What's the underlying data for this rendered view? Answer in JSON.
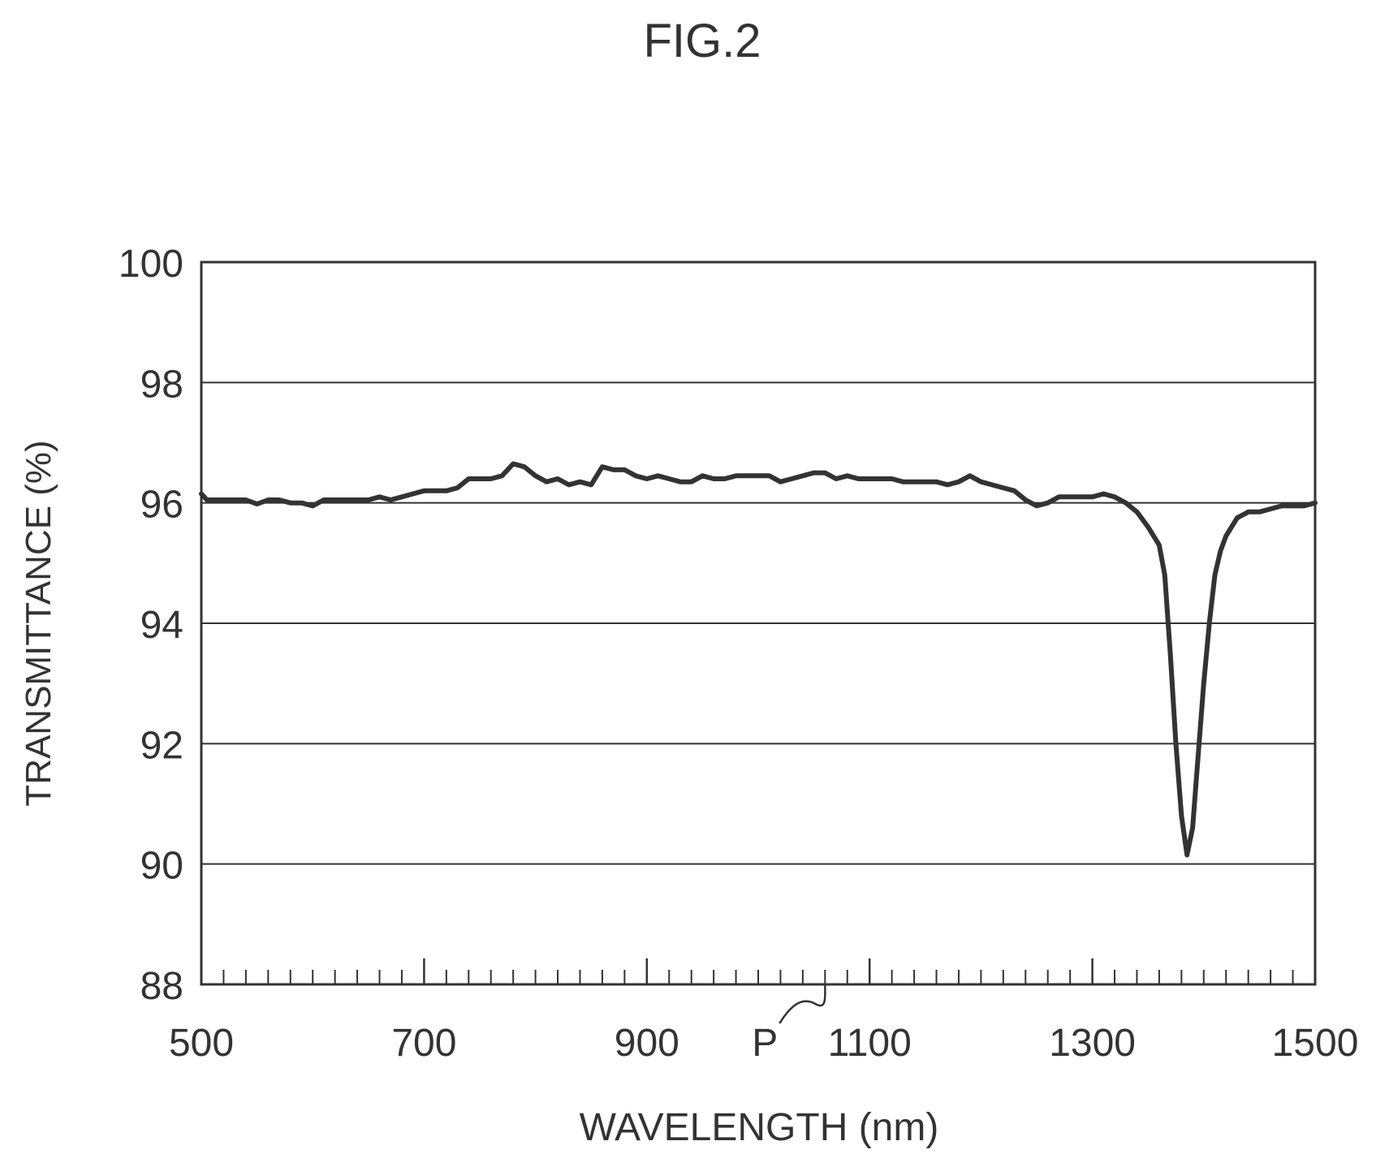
{
  "figure_label": "FIG.2",
  "chart_data": {
    "type": "line",
    "xlabel": "WAVELENGTH (nm)",
    "ylabel": "TRANSMITTANCE (%)",
    "xlim": [
      500,
      1500
    ],
    "ylim": [
      88,
      100
    ],
    "x_ticks": [
      500,
      700,
      900,
      1100,
      1300,
      1500
    ],
    "y_ticks": [
      88,
      90,
      92,
      94,
      96,
      98,
      100
    ],
    "x_minor_step": 20,
    "grid": "horizontal",
    "annotations": [
      {
        "text": "P",
        "x": 1060,
        "y": 88
      }
    ],
    "series": [
      {
        "color": "#333333",
        "x": [
          500,
          505,
          510,
          520,
          530,
          540,
          550,
          560,
          570,
          580,
          590,
          600,
          610,
          620,
          630,
          640,
          650,
          660,
          670,
          680,
          690,
          700,
          710,
          720,
          730,
          740,
          750,
          760,
          770,
          780,
          790,
          800,
          810,
          820,
          830,
          840,
          850,
          860,
          870,
          880,
          890,
          900,
          910,
          920,
          930,
          940,
          950,
          960,
          970,
          980,
          990,
          1000,
          1010,
          1020,
          1030,
          1040,
          1050,
          1060,
          1070,
          1080,
          1090,
          1100,
          1110,
          1120,
          1130,
          1140,
          1150,
          1160,
          1170,
          1180,
          1190,
          1200,
          1210,
          1220,
          1230,
          1240,
          1250,
          1260,
          1270,
          1280,
          1290,
          1300,
          1310,
          1320,
          1330,
          1340,
          1350,
          1360,
          1365,
          1370,
          1375,
          1380,
          1385,
          1390,
          1395,
          1400,
          1405,
          1410,
          1415,
          1420,
          1430,
          1440,
          1450,
          1460,
          1470,
          1480,
          1490,
          1500
        ],
        "y": [
          96.15,
          96.05,
          96.05,
          96.05,
          96.05,
          96.05,
          95.98,
          96.05,
          96.05,
          96.0,
          96.0,
          95.95,
          96.05,
          96.05,
          96.05,
          96.05,
          96.05,
          96.1,
          96.05,
          96.1,
          96.15,
          96.2,
          96.2,
          96.2,
          96.25,
          96.4,
          96.4,
          96.4,
          96.45,
          96.65,
          96.6,
          96.45,
          96.35,
          96.4,
          96.3,
          96.35,
          96.3,
          96.6,
          96.55,
          96.55,
          96.45,
          96.4,
          96.45,
          96.4,
          96.35,
          96.35,
          96.45,
          96.4,
          96.4,
          96.45,
          96.45,
          96.45,
          96.45,
          96.35,
          96.4,
          96.45,
          96.5,
          96.5,
          96.4,
          96.45,
          96.4,
          96.4,
          96.4,
          96.4,
          96.35,
          96.35,
          96.35,
          96.35,
          96.3,
          96.35,
          96.45,
          96.35,
          96.3,
          96.25,
          96.2,
          96.05,
          95.95,
          96.0,
          96.1,
          96.1,
          96.1,
          96.1,
          96.15,
          96.1,
          96.0,
          95.85,
          95.6,
          95.3,
          94.8,
          93.5,
          92.0,
          90.8,
          90.15,
          90.6,
          91.8,
          93.0,
          94.0,
          94.8,
          95.2,
          95.45,
          95.75,
          95.85,
          95.85,
          95.9,
          95.95,
          95.95,
          95.95,
          96.0
        ]
      }
    ]
  }
}
